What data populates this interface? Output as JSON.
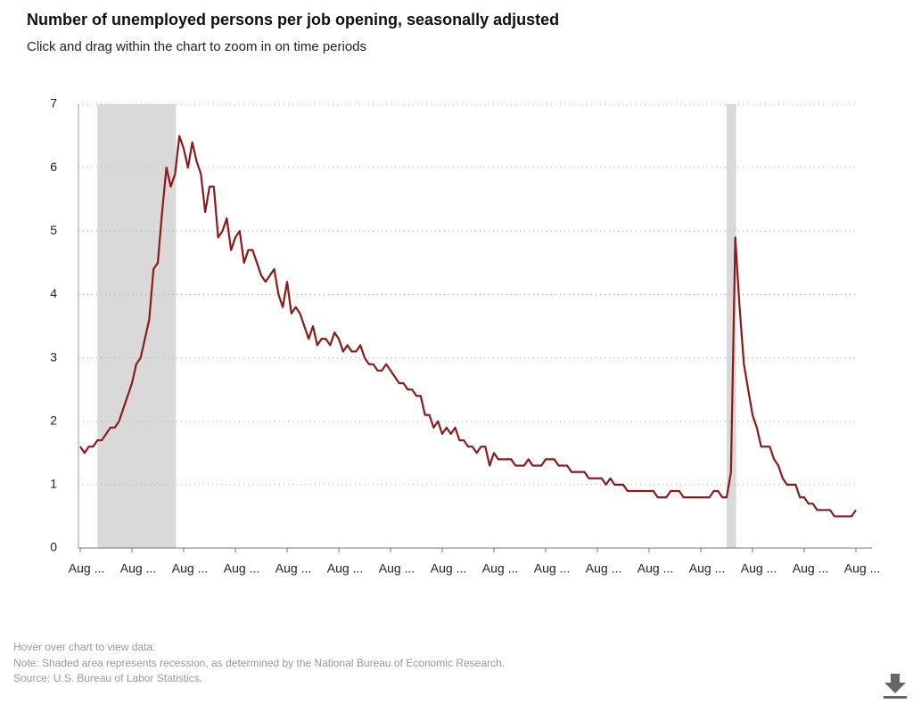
{
  "chart_data": {
    "type": "line",
    "title": "Number of unemployed persons per job opening, seasonally adjusted",
    "subtitle": "Click and drag within the chart to zoom in on time periods",
    "notes": [
      "Hover over chart to view data.",
      "Note: Shaded area represents recession, as determined by the National Bureau of Economic Research.",
      "Source: U.S. Bureau of Labor Statistics."
    ],
    "categories": [
      "Aug ...",
      null,
      null,
      null,
      null,
      null,
      null,
      null,
      null,
      null,
      null,
      null,
      "Aug ...",
      null,
      null,
      null,
      null,
      null,
      null,
      null,
      null,
      null,
      null,
      null,
      "Aug ...",
      null,
      null,
      null,
      null,
      null,
      null,
      null,
      null,
      null,
      null,
      null,
      "Aug ...",
      null,
      null,
      null,
      null,
      null,
      null,
      null,
      null,
      null,
      null,
      null,
      "Aug ...",
      null,
      null,
      null,
      null,
      null,
      null,
      null,
      null,
      null,
      null,
      null,
      "Aug ...",
      null,
      null,
      null,
      null,
      null,
      null,
      null,
      null,
      null,
      null,
      null,
      "Aug ...",
      null,
      null,
      null,
      null,
      null,
      null,
      null,
      null,
      null,
      null,
      null,
      "Aug ...",
      null,
      null,
      null,
      null,
      null,
      null,
      null,
      null,
      null,
      null,
      null,
      "Aug ...",
      null,
      null,
      null,
      null,
      null,
      null,
      null,
      null,
      null,
      null,
      null,
      "Aug ...",
      null,
      null,
      null,
      null,
      null,
      null,
      null,
      null,
      null,
      null,
      null,
      "Aug ...",
      null,
      null,
      null,
      null,
      null,
      null,
      null,
      null,
      null,
      null,
      null,
      "Aug ...",
      null,
      null,
      null,
      null,
      null,
      null,
      null,
      null,
      null,
      null,
      null,
      "Aug ...",
      null,
      null,
      null,
      null,
      null,
      null,
      null,
      null,
      null,
      null,
      null,
      "Aug ...",
      null,
      null,
      null,
      null,
      null,
      null,
      null,
      null,
      null,
      null,
      null,
      "Aug ...",
      null,
      null,
      null,
      null,
      null,
      null,
      null,
      null,
      null,
      null,
      null,
      "Aug ..."
    ],
    "values": [
      1.6,
      1.5,
      1.6,
      1.6,
      1.7,
      1.7,
      1.8,
      1.9,
      1.9,
      2.0,
      2.2,
      2.4,
      2.6,
      2.9,
      3.0,
      3.3,
      3.6,
      4.4,
      4.5,
      5.3,
      6.0,
      5.7,
      5.9,
      6.5,
      6.3,
      6.0,
      6.4,
      6.1,
      5.9,
      5.3,
      5.7,
      5.7,
      4.9,
      5.0,
      5.2,
      4.7,
      4.9,
      5.0,
      4.5,
      4.7,
      4.7,
      4.5,
      4.3,
      4.2,
      4.3,
      4.4,
      4.0,
      3.8,
      4.2,
      3.7,
      3.8,
      3.7,
      3.5,
      3.3,
      3.5,
      3.2,
      3.3,
      3.3,
      3.2,
      3.4,
      3.3,
      3.1,
      3.2,
      3.1,
      3.1,
      3.2,
      3.0,
      2.9,
      2.9,
      2.8,
      2.8,
      2.9,
      2.8,
      2.7,
      2.6,
      2.6,
      2.5,
      2.5,
      2.4,
      2.4,
      2.1,
      2.1,
      1.9,
      2.0,
      1.8,
      1.9,
      1.8,
      1.9,
      1.7,
      1.7,
      1.6,
      1.6,
      1.5,
      1.6,
      1.6,
      1.3,
      1.5,
      1.4,
      1.4,
      1.4,
      1.4,
      1.3,
      1.3,
      1.3,
      1.4,
      1.3,
      1.3,
      1.3,
      1.4,
      1.4,
      1.4,
      1.3,
      1.3,
      1.3,
      1.2,
      1.2,
      1.2,
      1.2,
      1.1,
      1.1,
      1.1,
      1.1,
      1.0,
      1.1,
      1.0,
      1.0,
      1.0,
      0.9,
      0.9,
      0.9,
      0.9,
      0.9,
      0.9,
      0.9,
      0.8,
      0.8,
      0.8,
      0.9,
      0.9,
      0.9,
      0.8,
      0.8,
      0.8,
      0.8,
      0.8,
      0.8,
      0.8,
      0.9,
      0.9,
      0.8,
      0.8,
      1.2,
      4.9,
      3.8,
      2.9,
      2.5,
      2.1,
      1.9,
      1.6,
      1.6,
      1.6,
      1.4,
      1.3,
      1.1,
      1.0,
      1.0,
      1.0,
      0.8,
      0.8,
      0.7,
      0.7,
      0.6,
      0.6,
      0.6,
      0.6,
      0.5,
      0.5,
      0.5,
      0.5,
      0.5,
      0.6
    ],
    "color": "#8b1a1a",
    "recessions": [
      {
        "start": 4,
        "end": 22
      },
      {
        "start": 150,
        "end": 152
      }
    ],
    "recession_color": "#d9d9d9",
    "ylim": [
      0,
      7
    ],
    "yticks": [
      0,
      1,
      2,
      3,
      4,
      5,
      6,
      7
    ],
    "grid": true
  }
}
